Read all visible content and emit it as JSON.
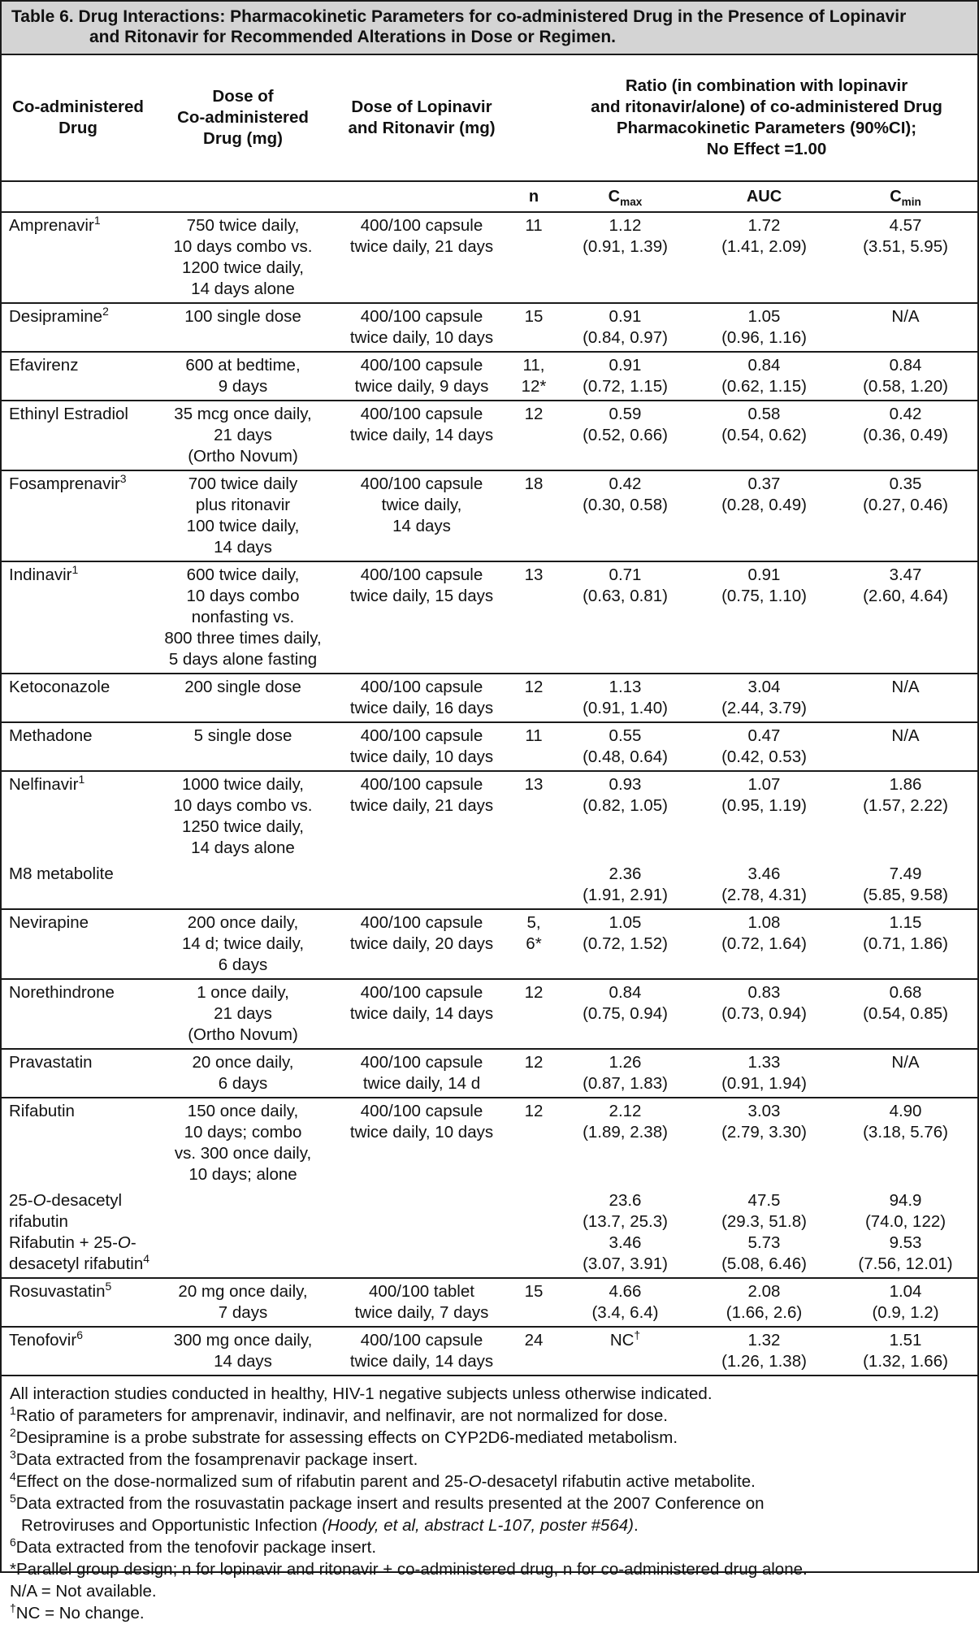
{
  "title": {
    "line1": "Table 6. Drug Interactions: Pharmacokinetic Parameters for co-administered Drug in the Presence of Lopinavir",
    "line2": "and Ritonavir for Recommended Alterations in Dose or Regimen."
  },
  "headers": {
    "col1": "Co-administered\nDrug",
    "col2": "Dose of\nCo-administered\nDrug (mg)",
    "col3": "Dose of Lopinavir\nand Ritonavir (mg)",
    "ratio": "Ratio (in combination with lopinavir\nand ritonavir/alone) of co-administered Drug\nPharmacokinetic Parameters (90%CI);\nNo Effect =1.00",
    "n": "n",
    "cmax_base": "C",
    "cmax_sub": "max",
    "auc": "AUC",
    "cmin_base": "C",
    "cmin_sub": "min"
  },
  "rows": [
    {
      "drug": "Amprenavir",
      "sup": "1",
      "dose": "750 twice daily,\n10 days combo vs.\n1200 twice daily,\n14 days alone",
      "lpv": "400/100 capsule\ntwice daily, 21 days",
      "n": "11",
      "cmax": "1.12\n(0.91, 1.39)",
      "auc": "1.72\n(1.41, 2.09)",
      "cmin": "4.57\n(3.51, 5.95)"
    },
    {
      "drug": "Desipramine",
      "sup": "2",
      "dose": "100 single dose",
      "lpv": "400/100 capsule\ntwice daily, 10 days",
      "n": "15",
      "cmax": "0.91\n(0.84, 0.97)",
      "auc": "1.05\n(0.96, 1.16)",
      "cmin": "N/A"
    },
    {
      "drug": "Efavirenz",
      "sup": "",
      "dose": "600 at bedtime,\n9 days",
      "lpv": "400/100 capsule\ntwice daily, 9 days",
      "n": "11,\n12*",
      "cmax": "0.91\n(0.72, 1.15)",
      "auc": "0.84\n(0.62, 1.15)",
      "cmin": "0.84\n(0.58, 1.20)"
    },
    {
      "drug": "Ethinyl Estradiol",
      "sup": "",
      "dose": "35 mcg once daily,\n21 days\n(Ortho Novum)",
      "lpv": "400/100 capsule\ntwice daily, 14 days",
      "n": "12",
      "cmax": "0.59\n(0.52, 0.66)",
      "auc": "0.58\n(0.54, 0.62)",
      "cmin": "0.42\n(0.36, 0.49)"
    },
    {
      "drug": "Fosamprenavir",
      "sup": "3",
      "dose": "700 twice daily\nplus ritonavir\n100 twice daily,\n14 days",
      "lpv": "400/100 capsule\ntwice daily,\n14 days",
      "n": "18",
      "cmax": "0.42\n(0.30, 0.58)",
      "auc": "0.37\n(0.28, 0.49)",
      "cmin": "0.35\n(0.27, 0.46)"
    },
    {
      "drug": "Indinavir",
      "sup": "1",
      "dose": "600 twice daily,\n10 days combo\nnonfasting vs.\n800 three times daily,\n5 days alone fasting",
      "lpv": "400/100 capsule\ntwice daily, 15 days",
      "n": "13",
      "cmax": "0.71\n(0.63, 0.81)",
      "auc": "0.91\n(0.75, 1.10)",
      "cmin": "3.47\n(2.60, 4.64)"
    },
    {
      "drug": "Ketoconazole",
      "sup": "",
      "dose": "200 single dose",
      "lpv": "400/100 capsule\ntwice daily, 16 days",
      "n": "12",
      "cmax": "1.13\n(0.91, 1.40)",
      "auc": "3.04\n(2.44, 3.79)",
      "cmin": "N/A"
    },
    {
      "drug": "Methadone",
      "sup": "",
      "dose": "5 single dose",
      "lpv": "400/100 capsule\ntwice daily, 10 days",
      "n": "11",
      "cmax": "0.55\n(0.48, 0.64)",
      "auc": "0.47\n(0.42, 0.53)",
      "cmin": "N/A"
    },
    {
      "drug": "Nelfinavir",
      "sup": "1",
      "dose": "1000 twice daily,\n10 days combo vs.\n1250 twice daily,\n14 days alone",
      "lpv": "400/100 capsule\ntwice daily, 21 days",
      "n": "13",
      "cmax": "0.93\n(0.82, 1.05)",
      "auc": "1.07\n(0.95, 1.19)",
      "cmin": "1.86\n(1.57, 2.22)"
    },
    {
      "drug": "M8 metabolite",
      "sup": "",
      "dose": "",
      "lpv": "",
      "n": "",
      "cmax": "2.36\n(1.91, 2.91)",
      "auc": "3.46\n(2.78, 4.31)",
      "cmin": "7.49\n(5.85, 9.58)"
    },
    {
      "drug": "Nevirapine",
      "sup": "",
      "dose": "200 once daily,\n14 d; twice daily,\n6 days",
      "lpv": "400/100 capsule\ntwice daily, 20 days",
      "n": "5,\n6*",
      "cmax": "1.05\n(0.72, 1.52)",
      "auc": "1.08\n(0.72, 1.64)",
      "cmin": "1.15\n(0.71, 1.86)"
    },
    {
      "drug": "Norethindrone",
      "sup": "",
      "dose": "1 once daily,\n21 days\n(Ortho Novum)",
      "lpv": "400/100 capsule\ntwice daily, 14 days",
      "n": "12",
      "cmax": "0.84\n(0.75, 0.94)",
      "auc": "0.83\n(0.73, 0.94)",
      "cmin": "0.68\n(0.54, 0.85)"
    },
    {
      "drug": "Pravastatin",
      "sup": "",
      "dose": "20 once daily,\n6 days",
      "lpv": "400/100 capsule\ntwice daily, 14 d",
      "n": "12",
      "cmax": "1.26\n(0.87, 1.83)",
      "auc": "1.33\n(0.91, 1.94)",
      "cmin": "N/A"
    },
    {
      "drug": "Rifabutin",
      "sup": "",
      "dose": "150 once daily,\n10 days; combo\nvs. 300 once daily,\n10 days; alone",
      "lpv": "400/100 capsule\ntwice daily, 10 days",
      "n": "12",
      "cmax": "2.12\n(1.89, 2.38)",
      "auc": "3.03\n(2.79, 3.30)",
      "cmin": "4.90\n(3.18, 5.76)"
    },
    {
      "drug_a": "25-",
      "drug_ital": "O",
      "drug_b": "-desacetyl\nrifabutin\nRifabutin + 25-",
      "drug_ital2": "O",
      "drug_c": "-\ndesacetyl rifabutin",
      "sup": "4",
      "dose": "",
      "lpv": "",
      "n": "",
      "cmax": "23.6\n(13.7, 25.3)\n3.46\n(3.07, 3.91)",
      "auc": "47.5\n(29.3, 51.8)\n5.73\n(5.08, 6.46)",
      "cmin": "94.9\n(74.0, 122)\n9.53\n(7.56, 12.01)"
    },
    {
      "drug": "Rosuvastatin",
      "sup": "5",
      "dose": "20 mg once daily,\n7 days",
      "lpv": "400/100 tablet\ntwice daily, 7 days",
      "n": "15",
      "cmax": "4.66\n(3.4, 6.4)",
      "auc": "2.08\n(1.66, 2.6)",
      "cmin": "1.04\n(0.9, 1.2)"
    },
    {
      "drug": "Tenofovir",
      "sup": "6",
      "dose": "300 mg once daily,\n14 days",
      "lpv": "400/100 capsule\ntwice daily, 14 days",
      "n": "24",
      "cmax_base": "NC",
      "cmax_sup": "†",
      "auc": "1.32\n(1.26, 1.38)",
      "cmin": "1.51\n(1.32, 1.66)"
    }
  ],
  "notes": {
    "general": "All interaction studies conducted in healthy, HIV-1 negative subjects unless otherwise indicated.",
    "n1_sup": "1",
    "n1": "Ratio of parameters for amprenavir, indinavir, and nelfinavir, are not normalized for dose.",
    "n2_sup": "2",
    "n2": "Desipramine is a probe substrate for assessing effects on CYP2D6-mediated metabolism.",
    "n3_sup": "3",
    "n3": "Data extracted from the fosamprenavir package insert.",
    "n4_sup": "4",
    "n4_a": "Effect on the dose-normalized sum of rifabutin parent and 25-",
    "n4_ital": "O",
    "n4_b": "-desacetyl rifabutin active metabolite.",
    "n5_sup": "5",
    "n5_a": "Data extracted from the rosuvastatin package insert and results presented at the 2007 Conference on",
    "n5_b": "Retroviruses and Opportunistic Infection ",
    "n5_ital": "(Hoody, et al, abstract L-107, poster #564)",
    "n5_c": ".",
    "n6_sup": "6",
    "n6": "Data extracted from the tenofovir package insert.",
    "star": "*Parallel group design; n for lopinavir and ritonavir + co-administered drug, n for co-administered drug alone.",
    "na": "N/A = Not available.",
    "nc_sup": "†",
    "nc": "NC = No change."
  }
}
